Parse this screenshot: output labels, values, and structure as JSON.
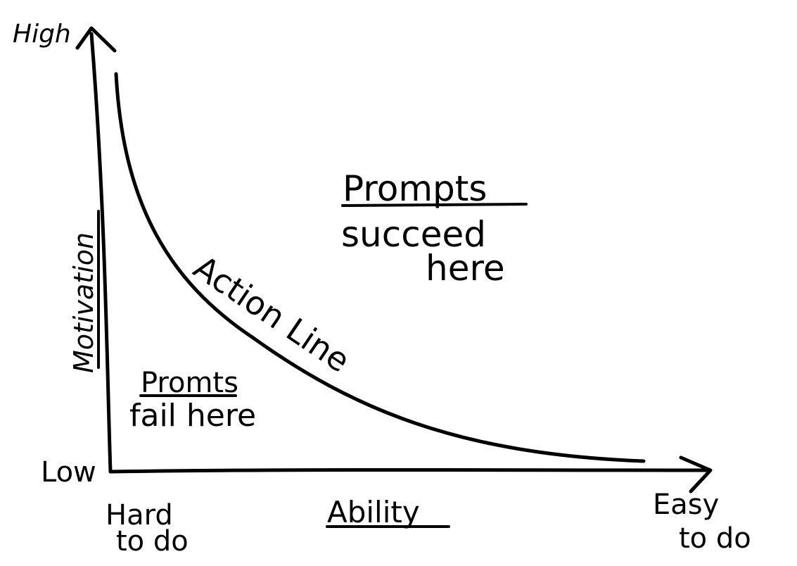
{
  "y_axis": {
    "label": "Motivation",
    "high_label": "High",
    "low_label": "Low"
  },
  "x_axis": {
    "label": "Ability",
    "hard_label_line1": "Hard",
    "hard_label_line2": "to do",
    "easy_label_line1": "Easy",
    "easy_label_line2": "to do"
  },
  "curve": {
    "label": "Action Line"
  },
  "regions": {
    "above": {
      "title": "Prompts",
      "line2": "succeed",
      "line3": "here"
    },
    "below": {
      "title": "Promts",
      "line2": "fail here"
    }
  }
}
